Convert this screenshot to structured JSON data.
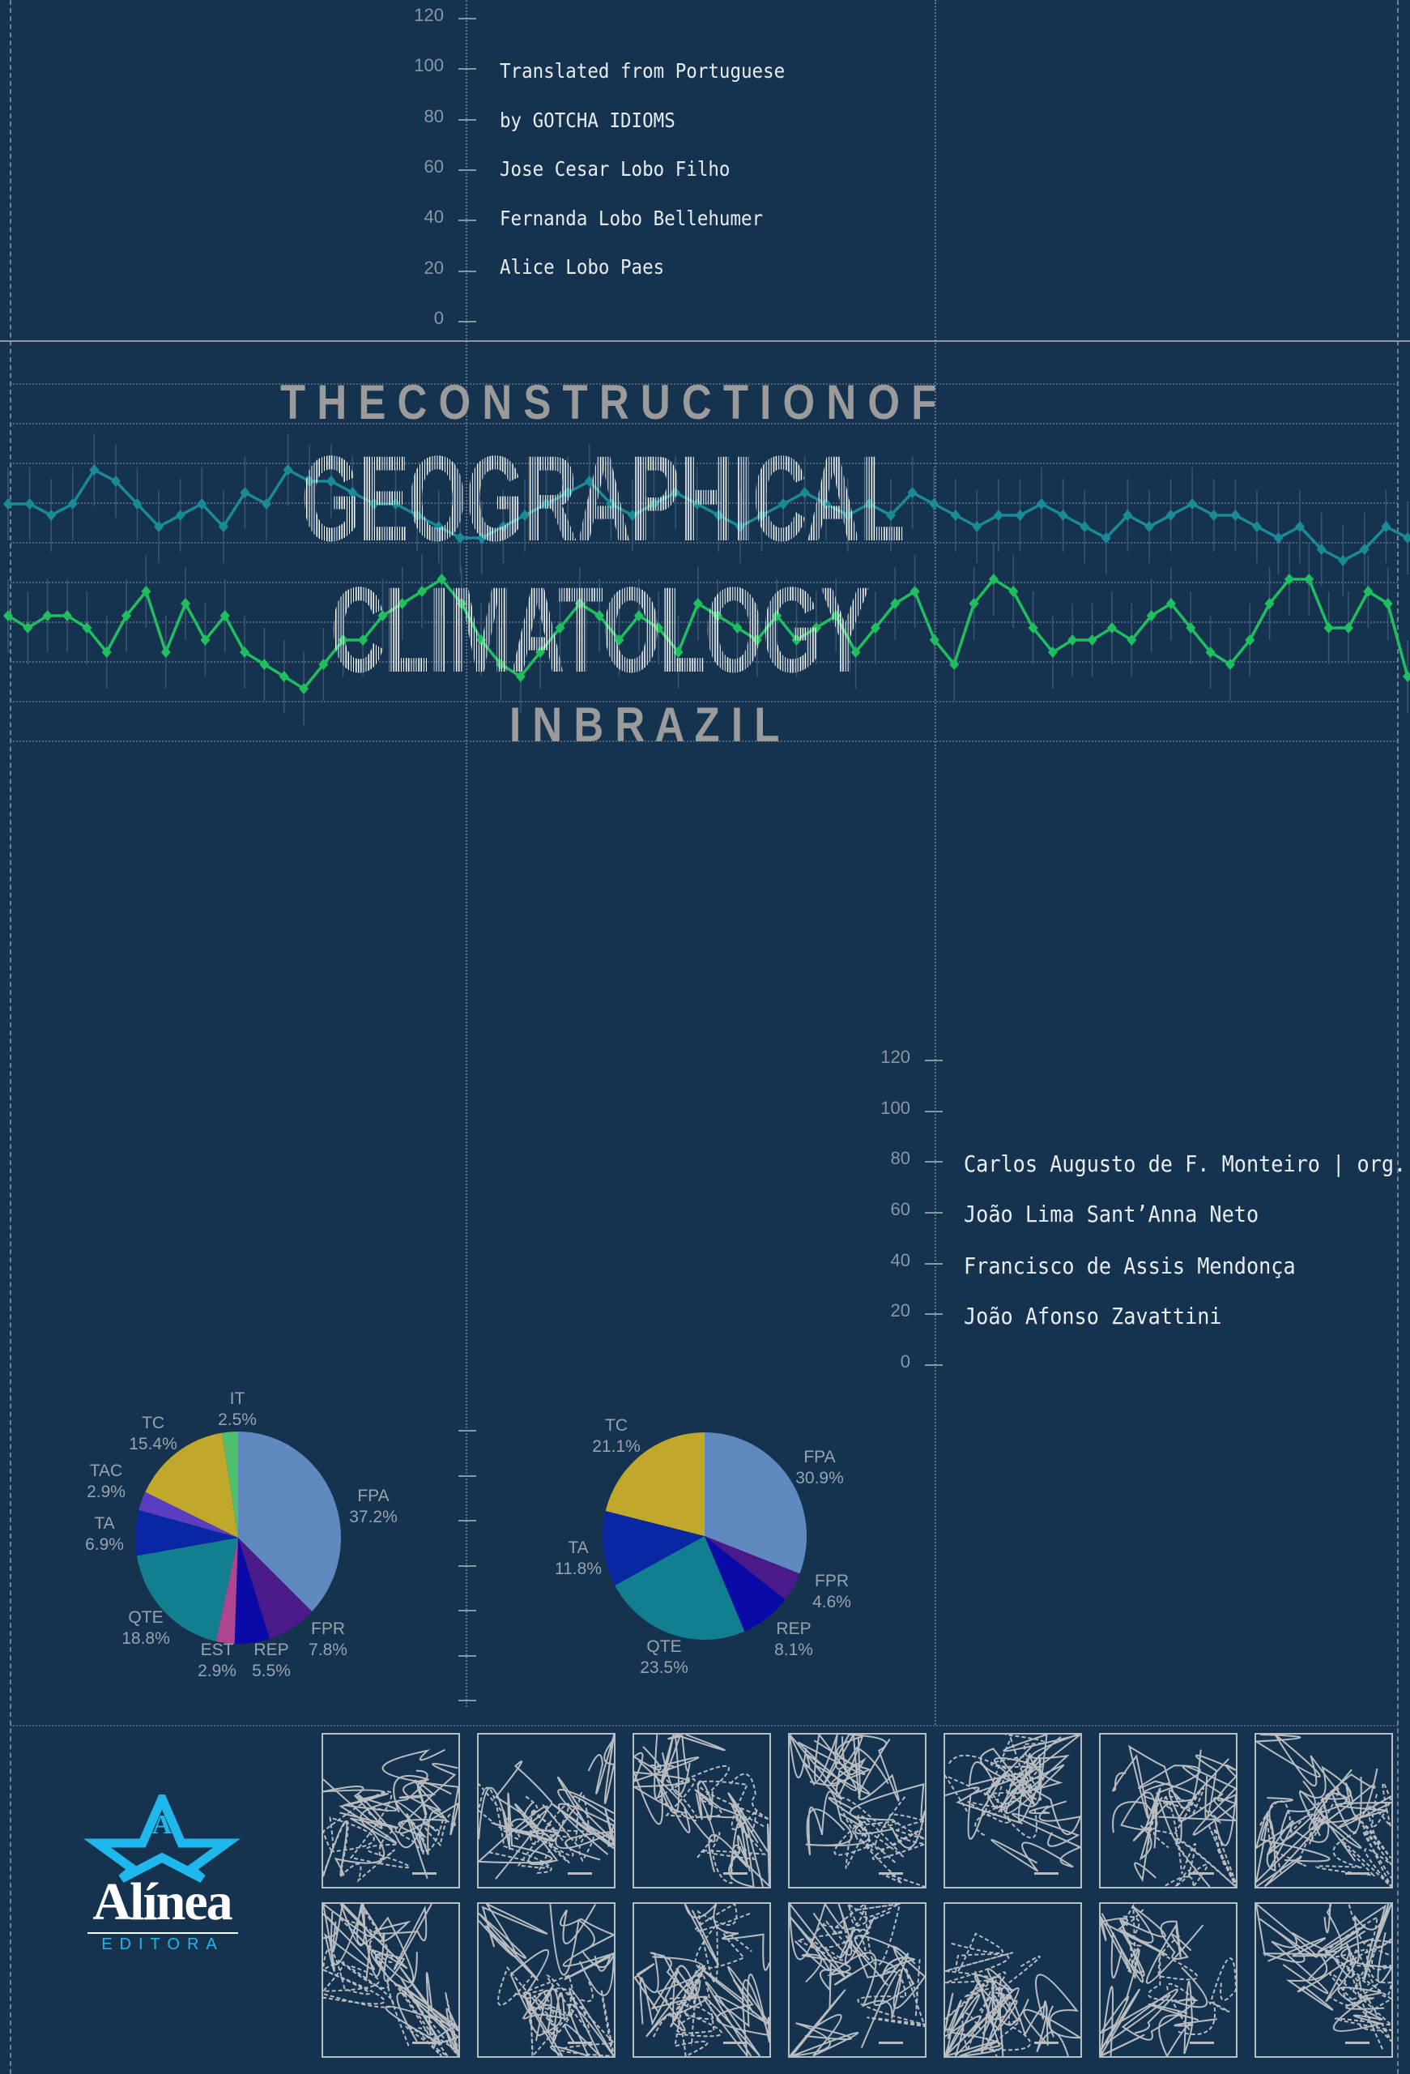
{
  "cover": {
    "background_color": "#15334f",
    "title_line1": "T H E   C O N S T R U C T I O N   O F",
    "title_line2": "GEOGRAPHICAL",
    "title_line3": "CLIMATOLOGY",
    "title_line4": "I N   B R A Z I L"
  },
  "top_axis": {
    "ticks": [
      "120",
      "100",
      "80",
      "60",
      "40",
      "20",
      "0"
    ]
  },
  "translation_credits": [
    "Translated from Portuguese",
    "by GOTCHA IDIOMS",
    "Jose Cesar Lobo Filho",
    "Fernanda Lobo Bellehumer",
    "Alice Lobo Paes"
  ],
  "bottom_axis": {
    "ticks": [
      "120",
      "100",
      "80",
      "60",
      "40",
      "20",
      "0"
    ]
  },
  "authors": [
    "Carlos Augusto de F. Monteiro | org.",
    "João Lima Sant’Anna Neto",
    "Francisco de Assis Mendonça",
    "João Afonso Zavattini"
  ],
  "chart_data": [
    {
      "type": "line",
      "series": [
        {
          "color": "#1a8a96",
          "values": [
            5,
            5,
            4,
            5,
            8,
            7,
            5,
            3,
            4,
            5,
            3,
            6,
            5,
            8,
            7,
            7,
            6,
            5,
            5,
            4,
            3,
            2,
            2,
            3,
            4,
            5,
            6,
            7,
            5,
            4,
            5,
            6,
            5,
            4,
            3,
            4,
            5,
            6,
            5,
            4,
            5,
            4,
            6,
            5,
            4,
            3,
            4,
            4,
            5,
            4,
            3,
            2,
            4,
            3,
            4,
            5,
            4,
            4,
            3,
            2,
            3,
            1,
            0,
            1,
            3,
            2
          ]
        },
        {
          "color": "#1fbf5f",
          "values": [
            5,
            4,
            5,
            5,
            4,
            2,
            5,
            7,
            2,
            6,
            3,
            5,
            2,
            1,
            0,
            -1,
            1,
            3,
            3,
            5,
            6,
            7,
            8,
            6,
            3,
            1,
            0,
            2,
            4,
            6,
            5,
            3,
            5,
            4,
            2,
            6,
            5,
            4,
            3,
            5,
            3,
            4,
            5,
            2,
            4,
            6,
            7,
            3,
            1,
            6,
            8,
            7,
            4,
            2,
            3,
            3,
            4,
            3,
            5,
            6,
            4,
            2,
            1,
            3,
            6,
            8,
            8,
            4,
            4,
            7,
            6,
            0
          ]
        }
      ]
    },
    {
      "type": "pie",
      "slices": [
        {
          "label": "FPA",
          "value": 37.2,
          "text": "37.2%",
          "color": "#6089c0"
        },
        {
          "label": "FPR",
          "value": 7.8,
          "text": "7.8%",
          "color": "#4a1a8a"
        },
        {
          "label": "REP",
          "value": 5.5,
          "text": "5.5%",
          "color": "#0a0aa8"
        },
        {
          "label": "EST",
          "value": 2.9,
          "text": "2.9%",
          "color": "#b0458f"
        },
        {
          "label": "QTE",
          "value": 18.8,
          "text": "18.8%",
          "color": "#127f90"
        },
        {
          "label": "TA",
          "value": 6.9,
          "text": "6.9%",
          "color": "#0926a3"
        },
        {
          "label": "TAC",
          "value": 2.9,
          "text": "2.9%",
          "color": "#5a3dc0"
        },
        {
          "label": "TC",
          "value": 15.4,
          "text": "15.4%",
          "color": "#bfa82a"
        },
        {
          "label": "IT",
          "value": 2.5,
          "text": "2.5%",
          "color": "#4fbf70"
        }
      ]
    },
    {
      "type": "pie",
      "slices": [
        {
          "label": "FPA",
          "value": 30.9,
          "text": "30.9%",
          "color": "#6089c0"
        },
        {
          "label": "FPR",
          "value": 4.6,
          "text": "4.6%",
          "color": "#4a1a8a"
        },
        {
          "label": "REP",
          "value": 8.1,
          "text": "8.1%",
          "color": "#0a0aa8"
        },
        {
          "label": "QTE",
          "value": 23.5,
          "text": "23.5%",
          "color": "#127f90"
        },
        {
          "label": "TA",
          "value": 11.8,
          "text": "11.8%",
          "color": "#0926a3"
        },
        {
          "label": "TC",
          "value": 21.1,
          "text": "21.1%",
          "color": "#bfa82a"
        }
      ]
    }
  ],
  "publisher": {
    "name": "Alínea",
    "sub": "EDITORA",
    "accent": "#1fb8ec",
    "star_letter": "A"
  },
  "weather_maps": {
    "count": 14,
    "line_color": "#b9bcc0"
  }
}
